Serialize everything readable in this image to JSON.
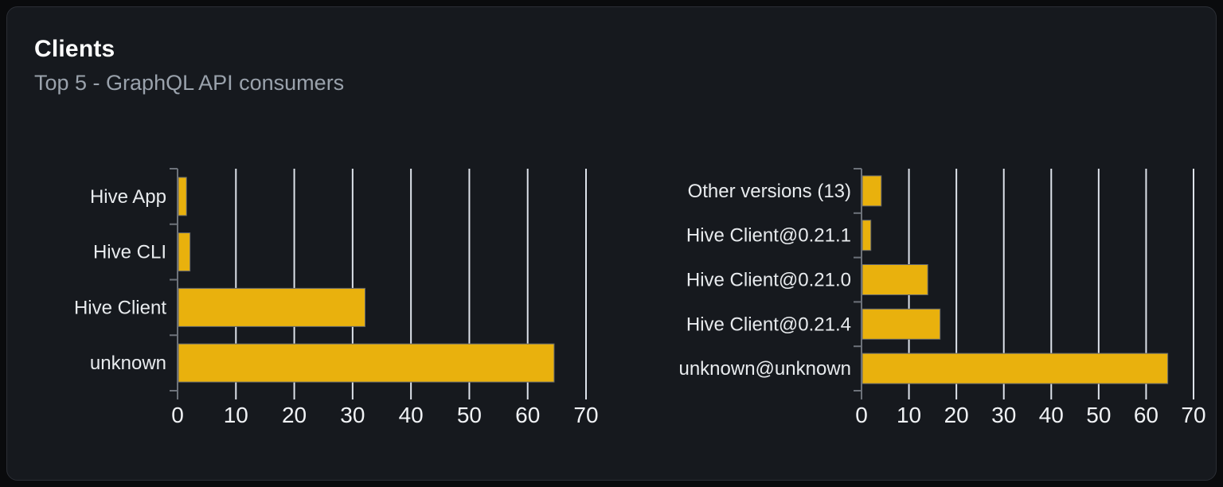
{
  "panel": {
    "title": "Clients",
    "subtitle": "Top 5 - GraphQL API consumers"
  },
  "colors": {
    "page_bg": "#0a0b0d",
    "card_bg": "#16191e",
    "card_border": "#2b2e35",
    "title_text": "#ffffff",
    "subtitle_text": "#9aa2ac",
    "category_label": "#e8ebee",
    "axis_value_label": "#f0f2f5",
    "gridline": "#dde2ea",
    "axis_line": "#6d727a",
    "bar_fill": "#e9b10d",
    "bar_border": "#63676e"
  },
  "chart_data": [
    {
      "type": "bar",
      "orientation": "horizontal",
      "categories": [
        "Hive App",
        "Hive CLI",
        "Hive Client",
        "unknown"
      ],
      "values": [
        1.4,
        2,
        32,
        64.4
      ],
      "xlim": [
        0,
        70
      ],
      "xticks": [
        0,
        10,
        20,
        30,
        40,
        50,
        60,
        70
      ],
      "grid": true,
      "legend": false
    },
    {
      "type": "bar",
      "orientation": "horizontal",
      "categories": [
        "Other versions (13)",
        "Hive Client@0.21.1",
        "Hive Client@0.21.0",
        "Hive Client@0.21.4",
        "unknown@unknown"
      ],
      "values": [
        4,
        1.8,
        13.8,
        16.4,
        64.4
      ],
      "xlim": [
        0,
        70
      ],
      "xticks": [
        0,
        10,
        20,
        30,
        40,
        50,
        60,
        70
      ],
      "grid": true,
      "legend": false
    }
  ]
}
